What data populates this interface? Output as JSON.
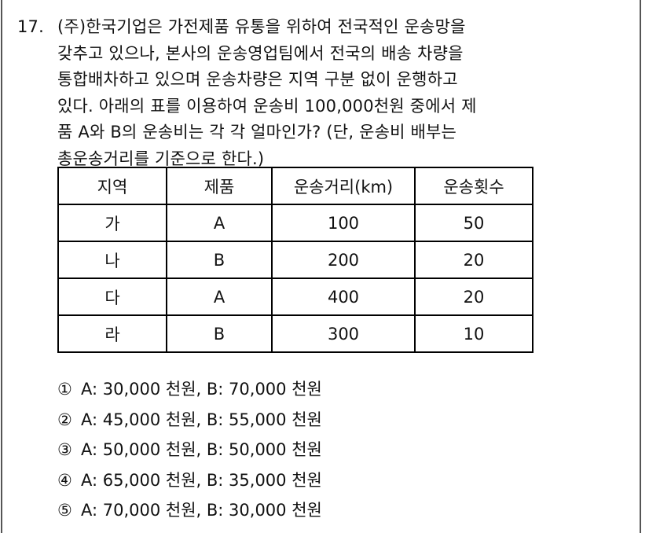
{
  "question": {
    "number": "17.",
    "lines": [
      "(주)한국기업은 가전제품 유통을 위하여 전국적인 운송망을",
      "갖추고 있으나, 본사의 운송영업팀에서 전국의 배송 차량을",
      "통합배차하고 있으며 운송차량은 지역 구분 없이 운행하고",
      "있다. 아래의 표를 이용하여 운송비 100,000천원 중에서 제",
      "품 A와 B의 운송비는 각 각 얼마인가? (단, 운송비 배부는",
      "총운송거리를 기준으로 한다.)"
    ]
  },
  "table": {
    "headers": [
      "지역",
      "제품",
      "운송거리(km)",
      "운송횟수"
    ],
    "rows": [
      [
        "가",
        "A",
        "100",
        "50"
      ],
      [
        "나",
        "B",
        "200",
        "20"
      ],
      [
        "다",
        "A",
        "400",
        "20"
      ],
      [
        "라",
        "B",
        "300",
        "10"
      ]
    ]
  },
  "options": [
    {
      "mark": "①",
      "text": "A: 30,000 천원, B: 70,000 천원"
    },
    {
      "mark": "②",
      "text": "A: 45,000 천원, B: 55,000 천원"
    },
    {
      "mark": "③",
      "text": "A: 50,000 천원, B: 50,000 천원"
    },
    {
      "mark": "④",
      "text": "A: 65,000 천원, B: 35,000 천원"
    },
    {
      "mark": "⑤",
      "text": "A: 70,000 천원, B: 30,000 천원"
    }
  ]
}
